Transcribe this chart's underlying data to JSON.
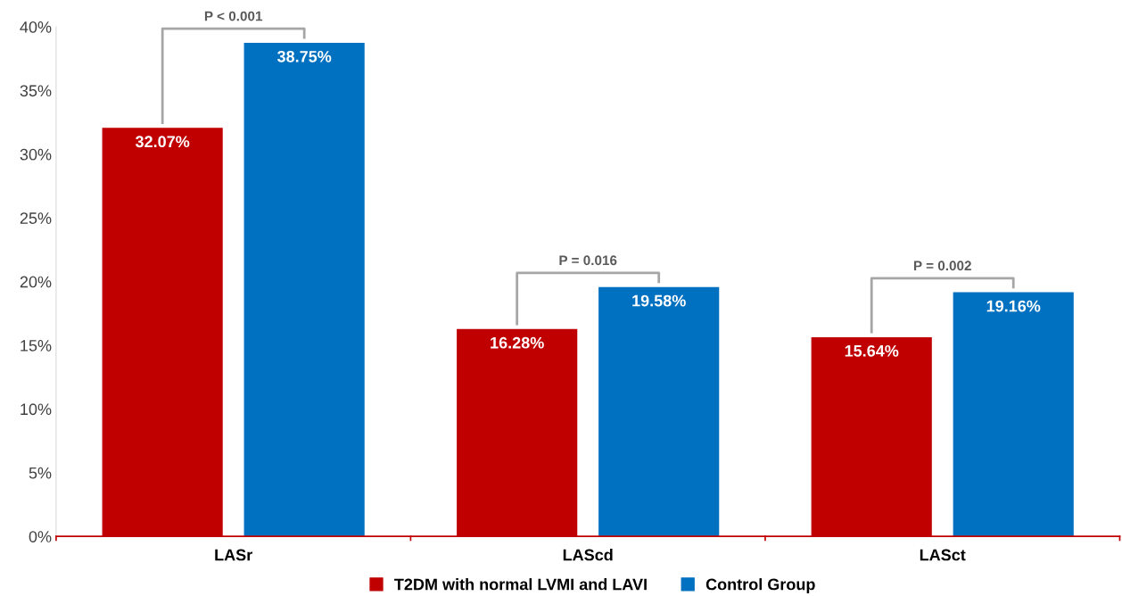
{
  "chart_data": {
    "type": "bar",
    "categories": [
      "LASr",
      "LAScd",
      "LASct"
    ],
    "series": [
      {
        "name": "T2DM with normal LVMI and LAVI",
        "color": "#c00000",
        "values": [
          32.07,
          16.28,
          15.64
        ],
        "value_labels": [
          "32.07%",
          "16.28%",
          "15.64%"
        ]
      },
      {
        "name": "Control Group",
        "color": "#0070c0",
        "values": [
          38.75,
          19.58,
          19.16
        ],
        "value_labels": [
          "38.75%",
          "19.58%",
          "19.16%"
        ]
      }
    ],
    "ylim": [
      0,
      40
    ],
    "yticks": [
      {
        "value": 0,
        "label": "0%"
      },
      {
        "value": 5,
        "label": "5%"
      },
      {
        "value": 10,
        "label": "10%"
      },
      {
        "value": 15,
        "label": "15%"
      },
      {
        "value": 20,
        "label": "20%"
      },
      {
        "value": 25,
        "label": "25%"
      },
      {
        "value": 30,
        "label": "30%"
      },
      {
        "value": 35,
        "label": "35%"
      },
      {
        "value": 40,
        "label": "40%"
      }
    ],
    "annotations": [
      "P < 0.001",
      "P = 0.016",
      "P = 0.002"
    ],
    "legend": "bottom",
    "grid": false
  }
}
